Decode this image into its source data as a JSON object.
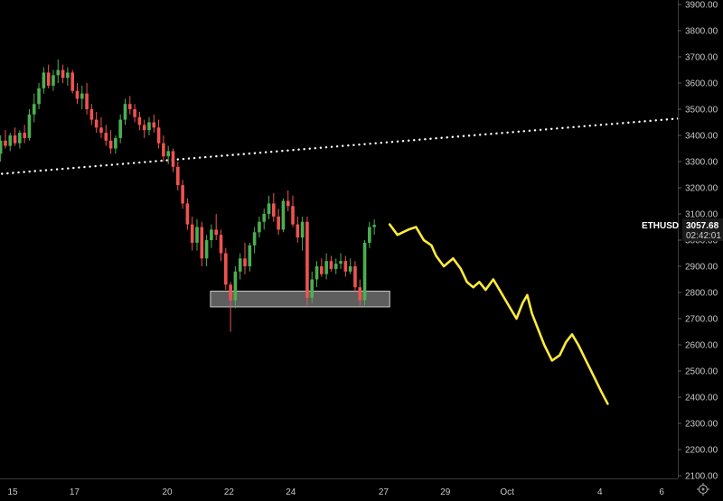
{
  "chart_data": {
    "type": "candlestick",
    "symbol": "ETHUSD",
    "last_price": "3057.68",
    "countdown": "02:42:01",
    "y_ticks": [
      "3900.00",
      "3800.00",
      "3700.00",
      "3600.00",
      "3500.00",
      "3400.00",
      "3300.00",
      "3200.00",
      "3100.00",
      "3000.00",
      "2900.00",
      "2800.00",
      "2700.00",
      "2600.00",
      "2500.00",
      "2400.00",
      "2300.00",
      "2200.00",
      "2100.00"
    ],
    "ylim": [
      2085,
      3920
    ],
    "x_ticks": [
      {
        "label": "15",
        "day": 15
      },
      {
        "label": "17",
        "day": 17
      },
      {
        "label": "20",
        "day": 20
      },
      {
        "label": "22",
        "day": 22
      },
      {
        "label": "24",
        "day": 24
      },
      {
        "label": "27",
        "day": 27
      },
      {
        "label": "29",
        "day": 29
      },
      {
        "label": "Oct",
        "day": 31
      },
      {
        "label": "4",
        "day": 34
      },
      {
        "label": "6",
        "day": 36
      }
    ],
    "colors": {
      "up": "#26a69a",
      "down": "#ef5350",
      "up_candle": "#4caf50",
      "projection": "#ffeb3b",
      "trendline": "#ffffff",
      "zone_fill": "#6e6e6e",
      "zone_border": "#d0d0d0"
    },
    "ohlc": [
      [
        3300,
        3380,
        3270,
        3350
      ],
      [
        3350,
        3390,
        3310,
        3330
      ],
      [
        3330,
        3400,
        3300,
        3380
      ],
      [
        3380,
        3420,
        3350,
        3360
      ],
      [
        3360,
        3410,
        3340,
        3400
      ],
      [
        3400,
        3430,
        3360,
        3370
      ],
      [
        3370,
        3420,
        3350,
        3410
      ],
      [
        3410,
        3440,
        3370,
        3390
      ],
      [
        3390,
        3500,
        3380,
        3480
      ],
      [
        3480,
        3560,
        3450,
        3520
      ],
      [
        3520,
        3600,
        3500,
        3580
      ],
      [
        3580,
        3660,
        3560,
        3640
      ],
      [
        3640,
        3670,
        3580,
        3590
      ],
      [
        3590,
        3650,
        3570,
        3630
      ],
      [
        3630,
        3690,
        3600,
        3650
      ],
      [
        3650,
        3670,
        3600,
        3620
      ],
      [
        3620,
        3660,
        3590,
        3640
      ],
      [
        3640,
        3650,
        3560,
        3570
      ],
      [
        3570,
        3600,
        3520,
        3540
      ],
      [
        3540,
        3590,
        3500,
        3560
      ],
      [
        3560,
        3600,
        3480,
        3500
      ],
      [
        3500,
        3520,
        3440,
        3460
      ],
      [
        3460,
        3490,
        3410,
        3430
      ],
      [
        3430,
        3470,
        3390,
        3410
      ],
      [
        3410,
        3440,
        3360,
        3380
      ],
      [
        3380,
        3420,
        3330,
        3350
      ],
      [
        3350,
        3400,
        3330,
        3390
      ],
      [
        3390,
        3480,
        3370,
        3460
      ],
      [
        3460,
        3540,
        3440,
        3520
      ],
      [
        3520,
        3550,
        3480,
        3500
      ],
      [
        3500,
        3520,
        3450,
        3470
      ],
      [
        3470,
        3490,
        3420,
        3440
      ],
      [
        3440,
        3460,
        3390,
        3420
      ],
      [
        3420,
        3470,
        3400,
        3450
      ],
      [
        3450,
        3480,
        3410,
        3430
      ],
      [
        3430,
        3460,
        3350,
        3370
      ],
      [
        3370,
        3400,
        3300,
        3320
      ],
      [
        3320,
        3360,
        3290,
        3340
      ],
      [
        3340,
        3350,
        3260,
        3280
      ],
      [
        3280,
        3300,
        3190,
        3210
      ],
      [
        3210,
        3230,
        3120,
        3140
      ],
      [
        3140,
        3160,
        3040,
        3060
      ],
      [
        3060,
        3090,
        2960,
        2990
      ],
      [
        2990,
        3080,
        2960,
        3050
      ],
      [
        3050,
        3070,
        2900,
        2930
      ],
      [
        2930,
        3020,
        2900,
        3000
      ],
      [
        3000,
        3060,
        2970,
        3040
      ],
      [
        3040,
        3100,
        3000,
        3020
      ],
      [
        3020,
        3040,
        2920,
        2950
      ],
      [
        2950,
        2970,
        2810,
        2830
      ],
      [
        2830,
        2840,
        2650,
        2770
      ],
      [
        2770,
        2900,
        2740,
        2880
      ],
      [
        2880,
        2950,
        2850,
        2930
      ],
      [
        2930,
        2990,
        2870,
        2900
      ],
      [
        2900,
        2990,
        2880,
        2980
      ],
      [
        2980,
        3050,
        2950,
        3030
      ],
      [
        3030,
        3090,
        3010,
        3070
      ],
      [
        3070,
        3120,
        3040,
        3100
      ],
      [
        3100,
        3170,
        3080,
        3140
      ],
      [
        3140,
        3180,
        3070,
        3090
      ],
      [
        3090,
        3120,
        3020,
        3040
      ],
      [
        3040,
        3160,
        3030,
        3150
      ],
      [
        3150,
        3190,
        3110,
        3130
      ],
      [
        3130,
        3170,
        3050,
        3060
      ],
      [
        3060,
        3090,
        2990,
        3010
      ],
      [
        3010,
        3090,
        2960,
        3070
      ],
      [
        3070,
        3090,
        2750,
        2780
      ],
      [
        2780,
        2880,
        2760,
        2850
      ],
      [
        2850,
        2920,
        2820,
        2900
      ],
      [
        2900,
        2930,
        2860,
        2870
      ],
      [
        2870,
        2950,
        2850,
        2920
      ],
      [
        2920,
        2940,
        2880,
        2890
      ],
      [
        2890,
        2930,
        2870,
        2910
      ],
      [
        2910,
        2950,
        2890,
        2920
      ],
      [
        2920,
        2940,
        2860,
        2880
      ],
      [
        2880,
        2930,
        2870,
        2900
      ],
      [
        2900,
        2920,
        2800,
        2820
      ],
      [
        2820,
        2850,
        2750,
        2770
      ],
      [
        2770,
        3000,
        2750,
        2990
      ],
      [
        2990,
        3070,
        2970,
        3050
      ],
      [
        3050,
        3080,
        3020,
        3058
      ]
    ],
    "candle_start_day": 14.3,
    "candle_day_step": 0.155,
    "trendline": {
      "start": [
        14.3,
        3250
      ],
      "end": [
        36.6,
        3465
      ]
    },
    "support_zone": {
      "day_from": 21.4,
      "day_to": 27.2,
      "price_low": 2745,
      "price_high": 2805
    },
    "projection": [
      [
        27.2,
        3060
      ],
      [
        27.45,
        3020
      ],
      [
        27.8,
        3040
      ],
      [
        28.05,
        3050
      ],
      [
        28.3,
        3000
      ],
      [
        28.55,
        2980
      ],
      [
        28.7,
        2940
      ],
      [
        28.95,
        2900
      ],
      [
        29.25,
        2930
      ],
      [
        29.5,
        2890
      ],
      [
        29.7,
        2840
      ],
      [
        29.9,
        2820
      ],
      [
        30.1,
        2840
      ],
      [
        30.3,
        2810
      ],
      [
        30.55,
        2850
      ],
      [
        30.75,
        2810
      ],
      [
        31.0,
        2760
      ],
      [
        31.3,
        2700
      ],
      [
        31.5,
        2760
      ],
      [
        31.65,
        2790
      ],
      [
        31.8,
        2720
      ],
      [
        32.0,
        2660
      ],
      [
        32.2,
        2600
      ],
      [
        32.45,
        2540
      ],
      [
        32.7,
        2560
      ],
      [
        32.9,
        2610
      ],
      [
        33.1,
        2640
      ],
      [
        33.3,
        2600
      ],
      [
        33.55,
        2540
      ],
      [
        33.8,
        2480
      ],
      [
        34.05,
        2420
      ],
      [
        34.25,
        2375
      ]
    ]
  }
}
